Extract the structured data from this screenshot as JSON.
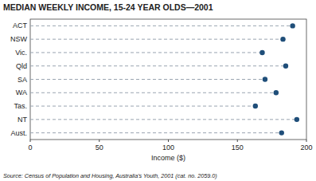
{
  "chart_data": {
    "type": "dot",
    "orientation": "horizontal",
    "title": "MEDIAN WEEKLY INCOME, 15-24 YEAR OLDS—2001",
    "categories": [
      "ACT",
      "NSW",
      "Vic.",
      "Qld",
      "SA",
      "WA",
      "Tas.",
      "NT",
      "Aust."
    ],
    "values": [
      190,
      183,
      168,
      185,
      170,
      178,
      163,
      193,
      182
    ],
    "xlabel": "Income ($)",
    "xlim": [
      0,
      200
    ],
    "xticks": [
      0,
      50,
      100,
      150,
      200
    ],
    "marker": "circle",
    "line_style": "dashed",
    "grid": false,
    "annotations": [
      "Source: Census of Population and Housing, Australia's Youth, 2001 (cat. no. 2059.0)"
    ]
  }
}
